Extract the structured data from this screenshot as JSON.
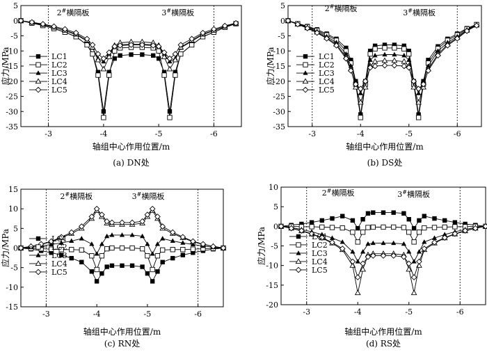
{
  "chart_data": [
    {
      "type": "line",
      "caption": "(a) DN处",
      "xlabel": "轴组中心作用位置/m",
      "ylabel": "应力/MPa",
      "xlim": [
        -2.5,
        -6.5
      ],
      "ylim": [
        -35,
        5
      ],
      "xticks": [
        -3,
        -4,
        -5,
        -6
      ],
      "yticks": [
        5,
        0,
        -5,
        -10,
        -15,
        -20,
        -25,
        -30,
        -35
      ],
      "annotations": [
        {
          "text": "2#横隔板",
          "x": -3.0
        },
        {
          "text": "3#横隔板",
          "x": -6.0
        }
      ],
      "x": [
        -2.5,
        -2.7,
        -2.9,
        -3.1,
        -3.3,
        -3.5,
        -3.7,
        -3.8,
        -3.9,
        -4.0,
        -4.1,
        -4.2,
        -4.3,
        -4.5,
        -4.7,
        -4.9,
        -5.0,
        -5.1,
        -5.2,
        -5.3,
        -5.4,
        -5.6,
        -5.8,
        -6.0,
        -6.2,
        -6.4
      ],
      "series": [
        {
          "name": "LC1",
          "marker": "square-filled",
          "values": [
            0,
            -0.8,
            -1.6,
            -2.6,
            -3.8,
            -5.3,
            -8,
            -11,
            -17,
            -30,
            -17,
            -12.5,
            -11.5,
            -11.2,
            -11.2,
            -11.5,
            -12.5,
            -17,
            -30,
            -17,
            -11,
            -8,
            -5.3,
            -3.8,
            -2.2,
            -1
          ]
        },
        {
          "name": "LC2",
          "marker": "square-open",
          "values": [
            0,
            -0.8,
            -1.6,
            -2.6,
            -3.8,
            -5.3,
            -8,
            -11,
            -18,
            -32,
            -18,
            -10,
            -9,
            -8.8,
            -8.8,
            -9,
            -10,
            -18,
            -32,
            -18,
            -11,
            -8,
            -5.3,
            -3.8,
            -2.2,
            -1
          ]
        },
        {
          "name": "LC3",
          "marker": "triangle-filled",
          "values": [
            0,
            -0.6,
            -1.3,
            -2.2,
            -3.3,
            -4.6,
            -6.8,
            -9,
            -12.5,
            -13.5,
            -11,
            -8.5,
            -8,
            -7.8,
            -7.8,
            -8,
            -8.5,
            -11,
            -13.5,
            -12.5,
            -9,
            -6.8,
            -4.6,
            -3.3,
            -2,
            -0.9
          ]
        },
        {
          "name": "LC4",
          "marker": "triangle-open",
          "values": [
            0,
            -0.6,
            -1.3,
            -2.2,
            -3.2,
            -4.4,
            -6.5,
            -8.8,
            -13,
            -16,
            -12,
            -8.2,
            -7.3,
            -7,
            -7,
            -7.3,
            -8.2,
            -12,
            -16,
            -13,
            -8.8,
            -6.5,
            -4.4,
            -3.2,
            -1.9,
            -0.9
          ]
        },
        {
          "name": "LC5",
          "marker": "diamond-open",
          "values": [
            0,
            -0.5,
            -1.1,
            -1.9,
            -2.8,
            -4,
            -6,
            -8,
            -11,
            -12.5,
            -10.5,
            -8.5,
            -8.2,
            -8,
            -8,
            -8.2,
            -8.5,
            -10.5,
            -12.5,
            -11,
            -8,
            -6,
            -4,
            -2.8,
            -1.7,
            -0.8
          ]
        }
      ]
    },
    {
      "type": "line",
      "caption": "(b) DS处",
      "xlabel": "轴组中心作用位置/m",
      "ylabel": "应力/MPa",
      "xlim": [
        -2.5,
        -6.5
      ],
      "ylim": [
        -35,
        5
      ],
      "xticks": [
        -3,
        -4,
        -5,
        -6
      ],
      "yticks": [
        5,
        0,
        -5,
        -10,
        -15,
        -20,
        -25,
        -30,
        -35
      ],
      "annotations": [
        {
          "text": "2#横隔板",
          "x": -3.0
        },
        {
          "text": "3#横隔板",
          "x": -6.0
        }
      ],
      "x": [
        -2.5,
        -2.7,
        -2.9,
        -3.1,
        -3.3,
        -3.5,
        -3.7,
        -3.8,
        -3.9,
        -4.0,
        -4.1,
        -4.2,
        -4.3,
        -4.5,
        -4.7,
        -4.9,
        -5.0,
        -5.1,
        -5.2,
        -5.3,
        -5.4,
        -5.6,
        -5.8,
        -6.0,
        -6.2,
        -6.4
      ],
      "series": [
        {
          "name": "LC1",
          "marker": "square-filled",
          "values": [
            0,
            -0.9,
            -1.8,
            -2.9,
            -4.3,
            -6,
            -9,
            -13,
            -20,
            -31,
            -20,
            -10,
            -8.3,
            -8,
            -8,
            -8.3,
            -10,
            -20,
            -31,
            -20,
            -13,
            -8.5,
            -6,
            -4.3,
            -2.5,
            -1.2
          ]
        },
        {
          "name": "LC2",
          "marker": "square-open",
          "values": [
            0,
            -1,
            -2,
            -3.2,
            -4.7,
            -6.5,
            -10,
            -14,
            -21,
            -32,
            -21,
            -11,
            -9.3,
            -9,
            -9,
            -9.3,
            -11,
            -21,
            -32,
            -21,
            -14,
            -9.2,
            -6.5,
            -4.7,
            -2.7,
            -1.3
          ]
        },
        {
          "name": "LC3",
          "marker": "triangle-filled",
          "values": [
            0,
            -1.1,
            -2.2,
            -3.5,
            -5.2,
            -7.2,
            -11,
            -15,
            -20,
            -24,
            -20,
            -13,
            -11.5,
            -11.2,
            -11.2,
            -11.5,
            -13,
            -20,
            -24,
            -20,
            -15,
            -10,
            -7.2,
            -5.2,
            -3,
            -1.4
          ]
        },
        {
          "name": "LC4",
          "marker": "triangle-open",
          "values": [
            0,
            -1.2,
            -2.4,
            -3.8,
            -5.6,
            -7.8,
            -12,
            -16,
            -22,
            -27,
            -22,
            -15,
            -13.5,
            -13.2,
            -13.2,
            -13.5,
            -15,
            -22,
            -27,
            -22,
            -16,
            -11,
            -7.8,
            -5.6,
            -3.2,
            -1.5
          ]
        },
        {
          "name": "LC5",
          "marker": "diamond-open",
          "values": [
            0,
            -1.2,
            -2.5,
            -4,
            -5.9,
            -8.2,
            -12.5,
            -16.5,
            -21,
            -22.5,
            -20,
            -15.5,
            -15,
            -14.8,
            -14.8,
            -15,
            -15.5,
            -20,
            -22.5,
            -21,
            -16.5,
            -11.5,
            -8.2,
            -5.9,
            -3.4,
            -1.6
          ]
        }
      ]
    },
    {
      "type": "line",
      "caption": "(c) RN处",
      "xlabel": "轴组中心作用位置/m",
      "ylabel": "应力/MPa",
      "xlim": [
        -2.5,
        -6.5
      ],
      "ylim": [
        -15,
        15
      ],
      "xticks": [
        -3,
        -4,
        -5,
        -6
      ],
      "yticks": [
        15,
        10,
        5,
        0,
        -5,
        -10,
        -15
      ],
      "annotations": [
        {
          "text": "2#横隔板",
          "x": -3.0
        },
        {
          "text": "3#横隔板",
          "x": -6.0
        }
      ],
      "x": [
        -2.5,
        -2.7,
        -2.9,
        -3.1,
        -3.3,
        -3.5,
        -3.7,
        -3.9,
        -4.0,
        -4.1,
        -4.2,
        -4.3,
        -4.5,
        -4.7,
        -4.9,
        -5.0,
        -5.1,
        -5.2,
        -5.3,
        -5.5,
        -5.7,
        -5.9,
        -6.1,
        -6.3,
        -6.5
      ],
      "series": [
        {
          "name": "LC1",
          "marker": "square-filled",
          "values": [
            0,
            -0.3,
            -0.7,
            -1.2,
            -1.8,
            -2.6,
            -3.6,
            -6,
            -8.5,
            -6.5,
            -4.8,
            -4.5,
            -4.5,
            -4.5,
            -4.8,
            -6.5,
            -8.5,
            -6,
            -3.6,
            -2.6,
            -1.8,
            -1.2,
            -0.7,
            -0.3,
            0
          ]
        },
        {
          "name": "LC2",
          "marker": "square-open",
          "values": [
            0,
            -0.1,
            -0.2,
            -0.3,
            -0.4,
            -0.4,
            -0.5,
            -2,
            -5.5,
            -2,
            -0.2,
            0,
            0,
            0,
            -0.2,
            -2,
            -5.5,
            -2,
            -0.5,
            -0.4,
            -0.4,
            -0.3,
            -0.2,
            -0.1,
            0
          ]
        },
        {
          "name": "LC3",
          "marker": "triangle-filled",
          "values": [
            0,
            0.2,
            0.5,
            0.9,
            1.3,
            1.8,
            2.4,
            1,
            -1.5,
            1,
            3,
            3.3,
            3.3,
            3.3,
            3,
            1,
            -1.5,
            1,
            2.4,
            1.8,
            1.3,
            0.9,
            0.5,
            0.2,
            0
          ]
        },
        {
          "name": "LC4",
          "marker": "triangle-open",
          "values": [
            0,
            0.4,
            0.9,
            1.6,
            2.6,
            3.7,
            5,
            7.5,
            9.5,
            8,
            6.3,
            6,
            6,
            6,
            6.3,
            8,
            9.5,
            7.5,
            5,
            3.7,
            2.6,
            1.6,
            0.9,
            0.4,
            0
          ]
        },
        {
          "name": "LC5",
          "marker": "diamond-open",
          "values": [
            0,
            0.4,
            1,
            1.7,
            2.8,
            4,
            5.5,
            8,
            10,
            8.5,
            6.8,
            6.5,
            6.5,
            6.5,
            6.8,
            8.5,
            10,
            8,
            5.5,
            4,
            2.8,
            1.7,
            1,
            0.4,
            0
          ]
        }
      ]
    },
    {
      "type": "line",
      "caption": "(d) RS处",
      "xlabel": "轴组中心作用位置/m",
      "ylabel": "应力/MPa",
      "xlim": [
        -2.5,
        -6.5
      ],
      "ylim": [
        -20,
        10
      ],
      "xticks": [
        -3,
        -4,
        -5,
        -6
      ],
      "yticks": [
        10,
        5,
        0,
        -5,
        -10,
        -15,
        -20
      ],
      "annotations": [
        {
          "text": "2#横隔板",
          "x": -3.0
        },
        {
          "text": "3#横隔板",
          "x": -6.0
        }
      ],
      "x": [
        -2.5,
        -2.7,
        -2.9,
        -3.1,
        -3.3,
        -3.5,
        -3.7,
        -3.9,
        -4.0,
        -4.1,
        -4.2,
        -4.3,
        -4.5,
        -4.7,
        -4.9,
        -5.0,
        -5.1,
        -5.2,
        -5.3,
        -5.5,
        -5.7,
        -5.9,
        -6.1,
        -6.3,
        -6.5
      ],
      "series": [
        {
          "name": "LC1",
          "marker": "square-filled",
          "values": [
            0,
            0.3,
            0.6,
            1,
            1.5,
            2,
            2.6,
            1.5,
            -0.5,
            1.8,
            3.3,
            3.5,
            3.5,
            3.5,
            3.3,
            1.8,
            -0.5,
            1.5,
            2.6,
            2,
            1.5,
            1,
            0.6,
            0.3,
            0
          ]
        },
        {
          "name": "LC2",
          "marker": "square-open",
          "values": [
            0,
            0,
            -0.1,
            -0.1,
            -0.2,
            -0.3,
            -0.4,
            -1.5,
            -4,
            -1.5,
            -0.3,
            -0.2,
            -0.2,
            -0.2,
            -0.3,
            -1.5,
            -4,
            -1.5,
            -0.4,
            -0.3,
            -0.2,
            -0.1,
            -0.1,
            0,
            0
          ]
        },
        {
          "name": "LC3",
          "marker": "triangle-filled",
          "values": [
            0,
            -0.3,
            -0.8,
            -1.4,
            -2.1,
            -3,
            -4,
            -6.5,
            -9,
            -6.5,
            -4.5,
            -4.3,
            -4.3,
            -4.3,
            -4.5,
            -6.5,
            -9,
            -6.5,
            -4,
            -3,
            -2.1,
            -1.4,
            -0.8,
            -0.3,
            0
          ]
        },
        {
          "name": "LC4",
          "marker": "triangle-open",
          "values": [
            0,
            -0.5,
            -1.2,
            -2,
            -3,
            -4.3,
            -6,
            -10,
            -17,
            -11,
            -7.3,
            -7,
            -7,
            -7,
            -7.3,
            -11,
            -17,
            -10,
            -6,
            -4.3,
            -3,
            -2,
            -1.2,
            -0.5,
            0
          ]
        },
        {
          "name": "LC5",
          "marker": "diamond-open",
          "values": [
            0,
            -0.5,
            -1.1,
            -1.9,
            -2.9,
            -4.1,
            -5.7,
            -9,
            -13,
            -9.5,
            -7.8,
            -7.5,
            -7.5,
            -7.5,
            -7.8,
            -9.5,
            -13,
            -9,
            -5.7,
            -4.1,
            -2.9,
            -1.9,
            -1.1,
            -0.5,
            0
          ]
        }
      ]
    }
  ]
}
